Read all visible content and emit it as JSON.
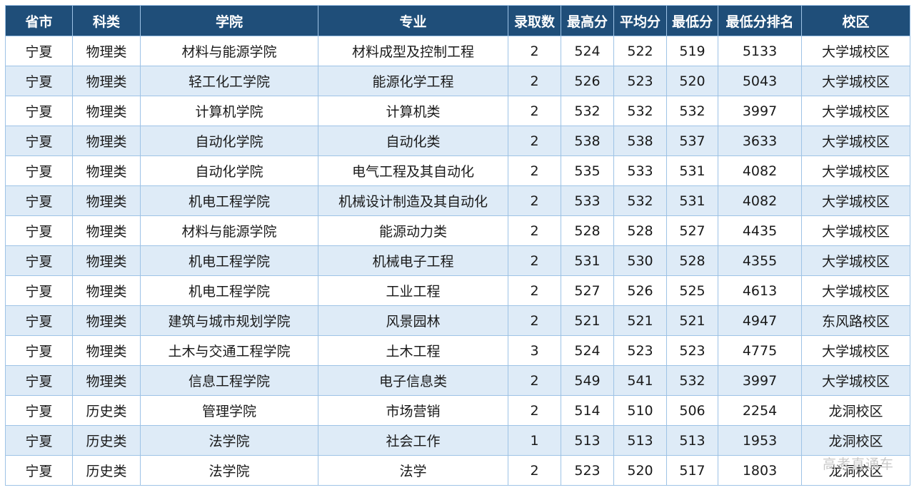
{
  "table": {
    "columns": [
      "省市",
      "科类",
      "学院",
      "专业",
      "录取数",
      "最高分",
      "平均分",
      "最低分",
      "最低分排名",
      "校区"
    ],
    "rows": [
      [
        "宁夏",
        "物理类",
        "材料与能源学院",
        "材料成型及控制工程",
        "2",
        "524",
        "522",
        "519",
        "5133",
        "大学城校区"
      ],
      [
        "宁夏",
        "物理类",
        "轻工化工学院",
        "能源化学工程",
        "2",
        "526",
        "523",
        "520",
        "5043",
        "大学城校区"
      ],
      [
        "宁夏",
        "物理类",
        "计算机学院",
        "计算机类",
        "2",
        "532",
        "532",
        "532",
        "3997",
        "大学城校区"
      ],
      [
        "宁夏",
        "物理类",
        "自动化学院",
        "自动化类",
        "2",
        "538",
        "538",
        "537",
        "3633",
        "大学城校区"
      ],
      [
        "宁夏",
        "物理类",
        "自动化学院",
        "电气工程及其自动化",
        "2",
        "535",
        "533",
        "531",
        "4082",
        "大学城校区"
      ],
      [
        "宁夏",
        "物理类",
        "机电工程学院",
        "机械设计制造及其自动化",
        "2",
        "533",
        "532",
        "531",
        "4082",
        "大学城校区"
      ],
      [
        "宁夏",
        "物理类",
        "材料与能源学院",
        "能源动力类",
        "2",
        "528",
        "528",
        "527",
        "4435",
        "大学城校区"
      ],
      [
        "宁夏",
        "物理类",
        "机电工程学院",
        "机械电子工程",
        "2",
        "531",
        "530",
        "528",
        "4355",
        "大学城校区"
      ],
      [
        "宁夏",
        "物理类",
        "机电工程学院",
        "工业工程",
        "2",
        "527",
        "526",
        "525",
        "4613",
        "大学城校区"
      ],
      [
        "宁夏",
        "物理类",
        "建筑与城市规划学院",
        "风景园林",
        "2",
        "521",
        "521",
        "521",
        "4947",
        "东风路校区"
      ],
      [
        "宁夏",
        "物理类",
        "土木与交通工程学院",
        "土木工程",
        "3",
        "524",
        "523",
        "523",
        "4775",
        "大学城校区"
      ],
      [
        "宁夏",
        "物理类",
        "信息工程学院",
        "电子信息类",
        "2",
        "549",
        "541",
        "532",
        "3997",
        "大学城校区"
      ],
      [
        "宁夏",
        "历史类",
        "管理学院",
        "市场营销",
        "2",
        "514",
        "510",
        "506",
        "2254",
        "龙洞校区"
      ],
      [
        "宁夏",
        "历史类",
        "法学院",
        "社会工作",
        "1",
        "513",
        "513",
        "513",
        "1953",
        "龙洞校区"
      ],
      [
        "宁夏",
        "历史类",
        "法学院",
        "法学",
        "2",
        "523",
        "520",
        "517",
        "1803",
        "龙洞校区"
      ]
    ]
  },
  "watermark": "高考直通车"
}
